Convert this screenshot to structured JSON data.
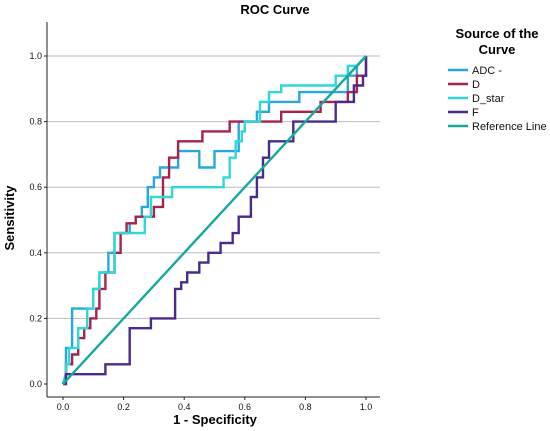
{
  "chart_data": {
    "type": "line",
    "title": "ROC Curve",
    "xlabel": "1 - Specificity",
    "ylabel": "Sensitivity",
    "xlim": [
      0,
      1
    ],
    "ylim": [
      0,
      1
    ],
    "xticks": [
      "0.0",
      "0.2",
      "0.4",
      "0.6",
      "0.8",
      "1.0"
    ],
    "yticks": [
      "0.0",
      "0.2",
      "0.4",
      "0.6",
      "0.8",
      "1.0"
    ],
    "grid": "horizontal",
    "legend_title_lines": [
      "Source of the",
      "Curve"
    ],
    "legend_position": "top-right",
    "series": [
      {
        "name": "ADC -",
        "color": "#29a8e0",
        "points": [
          [
            0,
            0
          ],
          [
            0.01,
            0.03
          ],
          [
            0.01,
            0.11
          ],
          [
            0.03,
            0.11
          ],
          [
            0.03,
            0.23
          ],
          [
            0.1,
            0.23
          ],
          [
            0.1,
            0.29
          ],
          [
            0.12,
            0.29
          ],
          [
            0.12,
            0.34
          ],
          [
            0.15,
            0.34
          ],
          [
            0.15,
            0.4
          ],
          [
            0.17,
            0.4
          ],
          [
            0.17,
            0.46
          ],
          [
            0.22,
            0.46
          ],
          [
            0.22,
            0.49
          ],
          [
            0.24,
            0.49
          ],
          [
            0.24,
            0.51
          ],
          [
            0.26,
            0.51
          ],
          [
            0.26,
            0.54
          ],
          [
            0.28,
            0.54
          ],
          [
            0.28,
            0.6
          ],
          [
            0.3,
            0.6
          ],
          [
            0.3,
            0.63
          ],
          [
            0.32,
            0.63
          ],
          [
            0.32,
            0.66
          ],
          [
            0.38,
            0.66
          ],
          [
            0.38,
            0.71
          ],
          [
            0.45,
            0.71
          ],
          [
            0.45,
            0.66
          ],
          [
            0.5,
            0.66
          ],
          [
            0.5,
            0.71
          ],
          [
            0.58,
            0.71
          ],
          [
            0.58,
            0.8
          ],
          [
            0.64,
            0.8
          ],
          [
            0.64,
            0.83
          ],
          [
            0.68,
            0.83
          ],
          [
            0.68,
            0.86
          ],
          [
            0.78,
            0.86
          ],
          [
            0.78,
            0.89
          ],
          [
            0.94,
            0.89
          ],
          [
            0.94,
            0.94
          ],
          [
            0.97,
            0.94
          ],
          [
            0.97,
            0.97
          ],
          [
            1.0,
            1.0
          ]
        ]
      },
      {
        "name": "D",
        "color": "#a8234c",
        "points": [
          [
            0,
            0
          ],
          [
            0.01,
            0.03
          ],
          [
            0.01,
            0.06
          ],
          [
            0.03,
            0.06
          ],
          [
            0.03,
            0.09
          ],
          [
            0.05,
            0.09
          ],
          [
            0.05,
            0.14
          ],
          [
            0.07,
            0.14
          ],
          [
            0.07,
            0.17
          ],
          [
            0.09,
            0.17
          ],
          [
            0.09,
            0.2
          ],
          [
            0.11,
            0.2
          ],
          [
            0.11,
            0.23
          ],
          [
            0.12,
            0.23
          ],
          [
            0.12,
            0.29
          ],
          [
            0.14,
            0.29
          ],
          [
            0.14,
            0.34
          ],
          [
            0.17,
            0.34
          ],
          [
            0.17,
            0.4
          ],
          [
            0.19,
            0.4
          ],
          [
            0.19,
            0.46
          ],
          [
            0.21,
            0.46
          ],
          [
            0.21,
            0.49
          ],
          [
            0.24,
            0.49
          ],
          [
            0.24,
            0.51
          ],
          [
            0.3,
            0.51
          ],
          [
            0.3,
            0.54
          ],
          [
            0.33,
            0.54
          ],
          [
            0.33,
            0.63
          ],
          [
            0.35,
            0.63
          ],
          [
            0.35,
            0.69
          ],
          [
            0.38,
            0.69
          ],
          [
            0.38,
            0.74
          ],
          [
            0.46,
            0.74
          ],
          [
            0.46,
            0.77
          ],
          [
            0.55,
            0.77
          ],
          [
            0.55,
            0.8
          ],
          [
            0.72,
            0.8
          ],
          [
            0.72,
            0.83
          ],
          [
            0.85,
            0.83
          ],
          [
            0.85,
            0.86
          ],
          [
            0.94,
            0.86
          ],
          [
            0.94,
            0.89
          ],
          [
            0.97,
            0.89
          ],
          [
            0.97,
            0.94
          ],
          [
            1.0,
            0.94
          ],
          [
            1.0,
            1.0
          ]
        ]
      },
      {
        "name": "D_star",
        "color": "#2fd8d8",
        "points": [
          [
            0,
            0
          ],
          [
            0.01,
            0.03
          ],
          [
            0.01,
            0.06
          ],
          [
            0.02,
            0.06
          ],
          [
            0.02,
            0.11
          ],
          [
            0.05,
            0.11
          ],
          [
            0.05,
            0.17
          ],
          [
            0.08,
            0.17
          ],
          [
            0.08,
            0.23
          ],
          [
            0.1,
            0.23
          ],
          [
            0.1,
            0.29
          ],
          [
            0.12,
            0.29
          ],
          [
            0.12,
            0.34
          ],
          [
            0.17,
            0.34
          ],
          [
            0.17,
            0.46
          ],
          [
            0.27,
            0.46
          ],
          [
            0.27,
            0.51
          ],
          [
            0.29,
            0.51
          ],
          [
            0.29,
            0.57
          ],
          [
            0.36,
            0.57
          ],
          [
            0.36,
            0.6
          ],
          [
            0.53,
            0.6
          ],
          [
            0.53,
            0.63
          ],
          [
            0.55,
            0.63
          ],
          [
            0.55,
            0.69
          ],
          [
            0.57,
            0.69
          ],
          [
            0.57,
            0.74
          ],
          [
            0.59,
            0.74
          ],
          [
            0.59,
            0.77
          ],
          [
            0.6,
            0.77
          ],
          [
            0.6,
            0.8
          ],
          [
            0.65,
            0.8
          ],
          [
            0.65,
            0.86
          ],
          [
            0.68,
            0.86
          ],
          [
            0.68,
            0.89
          ],
          [
            0.72,
            0.89
          ],
          [
            0.72,
            0.91
          ],
          [
            0.9,
            0.91
          ],
          [
            0.9,
            0.94
          ],
          [
            0.94,
            0.94
          ],
          [
            0.94,
            0.97
          ],
          [
            0.97,
            0.97
          ],
          [
            1.0,
            1.0
          ]
        ]
      },
      {
        "name": "F",
        "color": "#4a2a8c",
        "points": [
          [
            0,
            0
          ],
          [
            0.01,
            0.0
          ],
          [
            0.01,
            0.03
          ],
          [
            0.14,
            0.03
          ],
          [
            0.14,
            0.06
          ],
          [
            0.22,
            0.06
          ],
          [
            0.22,
            0.17
          ],
          [
            0.29,
            0.17
          ],
          [
            0.29,
            0.2
          ],
          [
            0.37,
            0.2
          ],
          [
            0.37,
            0.29
          ],
          [
            0.39,
            0.29
          ],
          [
            0.39,
            0.31
          ],
          [
            0.41,
            0.31
          ],
          [
            0.41,
            0.34
          ],
          [
            0.45,
            0.34
          ],
          [
            0.45,
            0.37
          ],
          [
            0.48,
            0.37
          ],
          [
            0.48,
            0.4
          ],
          [
            0.52,
            0.4
          ],
          [
            0.52,
            0.43
          ],
          [
            0.56,
            0.43
          ],
          [
            0.56,
            0.46
          ],
          [
            0.58,
            0.46
          ],
          [
            0.58,
            0.51
          ],
          [
            0.62,
            0.51
          ],
          [
            0.62,
            0.57
          ],
          [
            0.64,
            0.57
          ],
          [
            0.64,
            0.63
          ],
          [
            0.66,
            0.63
          ],
          [
            0.66,
            0.69
          ],
          [
            0.68,
            0.69
          ],
          [
            0.68,
            0.74
          ],
          [
            0.76,
            0.74
          ],
          [
            0.76,
            0.8
          ],
          [
            0.9,
            0.8
          ],
          [
            0.9,
            0.86
          ],
          [
            0.96,
            0.86
          ],
          [
            0.96,
            0.91
          ],
          [
            0.99,
            0.91
          ],
          [
            0.99,
            0.94
          ],
          [
            1.0,
            0.94
          ],
          [
            1.0,
            1.0
          ]
        ]
      },
      {
        "name": "Reference Line",
        "color": "#17a89c",
        "points": [
          [
            0,
            0
          ],
          [
            1,
            1
          ]
        ]
      }
    ]
  }
}
